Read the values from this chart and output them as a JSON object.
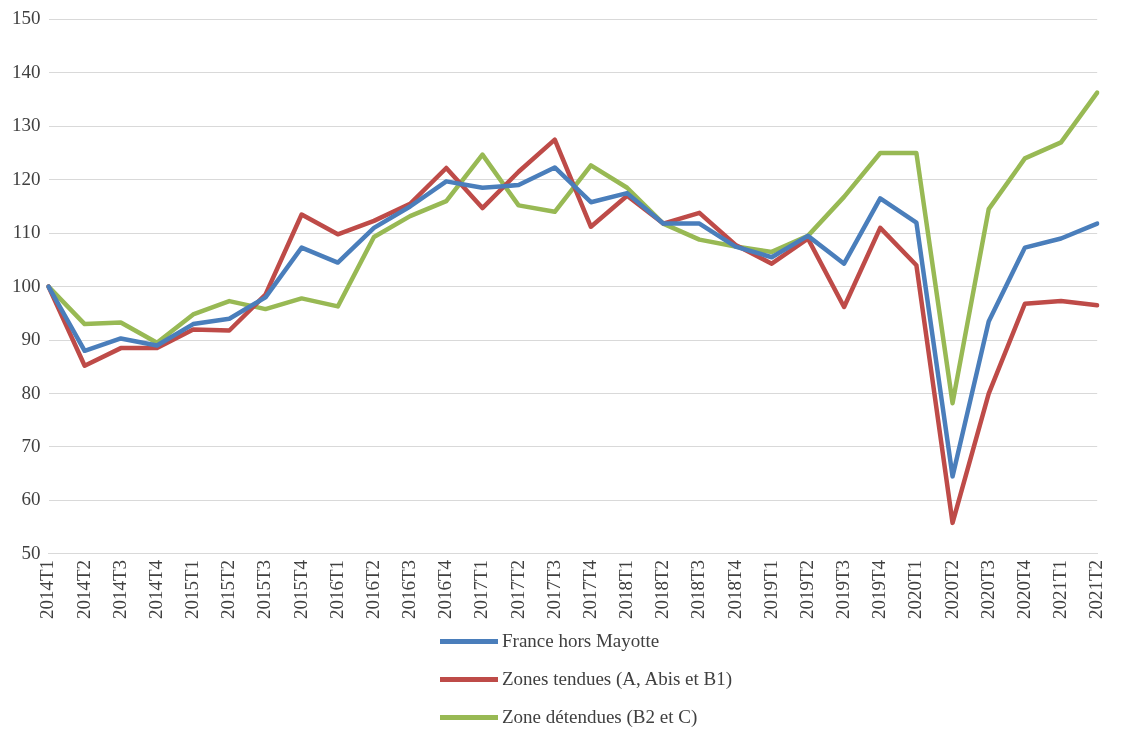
{
  "chart_data": {
    "type": "line",
    "categories": [
      "2014T1",
      "2014T2",
      "2014T3",
      "2014T4",
      "2015T1",
      "2015T2",
      "2015T3",
      "2015T4",
      "2016T1",
      "2016T2",
      "2016T3",
      "2016T4",
      "2017T1",
      "2017T2",
      "2017T3",
      "2017T4",
      "2018T1",
      "2018T2",
      "2018T3",
      "2018T4",
      "2019T1",
      "2019T2",
      "2019T3",
      "2019T4",
      "2020T1",
      "2020T2",
      "2020T3",
      "2020T4",
      "2021T1",
      "2021T2"
    ],
    "series": [
      {
        "name": "France hors Mayotte",
        "color": "#4a7ebb",
        "values": [
          100,
          88,
          90.3,
          89,
          93,
          94,
          98,
          107.3,
          104.5,
          111,
          115,
          119.7,
          118.5,
          119,
          122.3,
          115.8,
          117.5,
          111.8,
          111.8,
          107.5,
          105.5,
          109.5,
          104.3,
          116.5,
          112,
          64.5,
          93.5,
          107.3,
          109,
          111.8
        ]
      },
      {
        "name": "Zones tendues (A, Abis et B1)",
        "color": "#be4b48",
        "values": [
          100,
          85.2,
          88.5,
          88.5,
          92,
          91.8,
          98.5,
          113.5,
          109.8,
          112.3,
          115.5,
          122.2,
          114.7,
          121.5,
          127.5,
          111.2,
          117,
          111.8,
          113.8,
          107.8,
          104.3,
          109,
          96.2,
          111,
          104,
          55.8,
          80,
          96.8,
          97.3,
          96.5
        ]
      },
      {
        "name": "Zone détendues (B2 et C)",
        "color": "#98b954",
        "values": [
          100,
          93,
          93.3,
          89.5,
          94.8,
          97.3,
          95.8,
          97.8,
          96.3,
          109.3,
          113.2,
          116,
          124.7,
          115.2,
          114,
          122.7,
          118.5,
          111.8,
          108.8,
          107.5,
          106.5,
          109.5,
          116.8,
          125,
          125,
          78.2,
          114.5,
          124,
          127,
          136.3
        ]
      }
    ],
    "ylim": [
      50,
      150
    ],
    "yticks": [
      50,
      60,
      70,
      80,
      90,
      100,
      110,
      120,
      130,
      140,
      150
    ],
    "grid": "y",
    "legend": "bottom",
    "marker": "none",
    "line_style": "solid"
  }
}
